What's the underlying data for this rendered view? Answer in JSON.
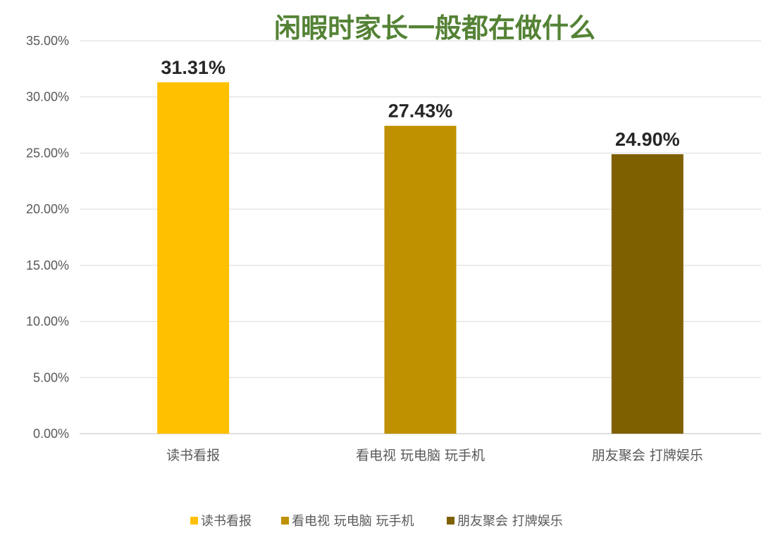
{
  "chart_data": {
    "type": "bar",
    "title": "闲暇时家长一般都在做什么",
    "categories": [
      "读书看报",
      "看电视 玩电脑 玩手机",
      "朋友聚会 打牌娱乐"
    ],
    "values": [
      31.31,
      27.43,
      24.9
    ],
    "data_labels": [
      "31.31%",
      "27.43%",
      "24.90%"
    ],
    "colors": [
      "#FFC000",
      "#BF9000",
      "#7F6000"
    ],
    "ylim": [
      0,
      35
    ],
    "yticks": [
      {
        "value": 0,
        "label": "0.00%"
      },
      {
        "value": 5,
        "label": "5.00%"
      },
      {
        "value": 10,
        "label": "10.00%"
      },
      {
        "value": 15,
        "label": "15.00%"
      },
      {
        "value": 20,
        "label": "20.00%"
      },
      {
        "value": 25,
        "label": "25.00%"
      },
      {
        "value": 30,
        "label": "30.00%"
      },
      {
        "value": 35,
        "label": "35.00%"
      }
    ],
    "grid": true,
    "legend_position": "bottom",
    "title_color": "#548235"
  }
}
